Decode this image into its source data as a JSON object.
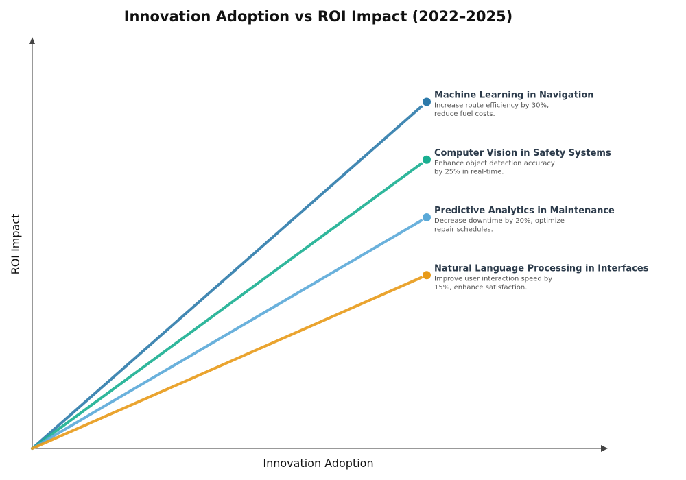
{
  "chart_data": {
    "type": "line",
    "title": "Innovation Adoption vs ROI Impact (2022–2025)",
    "xlabel": "Innovation Adoption",
    "ylabel": "ROI Impact",
    "grid": false,
    "series": [
      {
        "name": "Machine Learning in Navigation",
        "description": [
          "Increase route efficiency by 30%,",
          "reduce fuel costs."
        ],
        "color": "#2e7bab",
        "points": [
          [
            0,
            0
          ],
          [
            1,
            0.3
          ]
        ]
      },
      {
        "name": "Computer Vision in Safety Systems",
        "description": [
          "Enhance object detection accuracy",
          "by 25% in real-time."
        ],
        "color": "#1aaf91",
        "points": [
          [
            0,
            0
          ],
          [
            1,
            0.25
          ]
        ]
      },
      {
        "name": "Predictive Analytics in Maintenance",
        "description": [
          "Decrease downtime by 20%, optimize",
          "repair schedules."
        ],
        "color": "#5aa9d8",
        "points": [
          [
            0,
            0
          ],
          [
            1,
            0.2
          ]
        ]
      },
      {
        "name": "Natural Language Processing in Interfaces",
        "description": [
          "Improve user interaction speed by",
          "15%, enhance satisfaction."
        ],
        "color": "#e89a18",
        "points": [
          [
            0,
            0
          ],
          [
            1,
            0.15
          ]
        ]
      }
    ]
  }
}
